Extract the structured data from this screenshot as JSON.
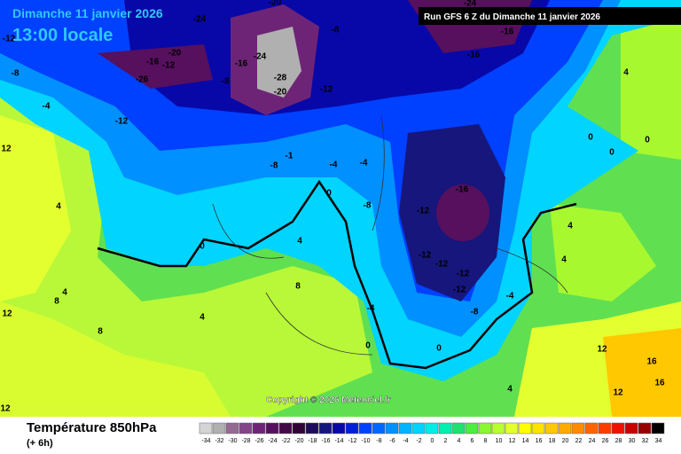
{
  "header": {
    "date": "Dimanche 11 janvier 2026",
    "time": "13:00 locale",
    "run": "Run GFS 6 Z du Dimanche 11 janvier 2026"
  },
  "copyright": "Copyright © 2026 Meteociel.fr",
  "footer": {
    "title": "Température 850hPa",
    "lead": "(+ 6h)"
  },
  "legend": {
    "values": [
      -34,
      -32,
      -30,
      -28,
      -26,
      -24,
      -22,
      -20,
      -18,
      -16,
      -14,
      -12,
      -10,
      -8,
      -6,
      -4,
      -2,
      0,
      2,
      4,
      6,
      8,
      10,
      12,
      14,
      16,
      18,
      20,
      22,
      24,
      26,
      28,
      30,
      32,
      34
    ],
    "colors": [
      "#d4d4d4",
      "#b0b0b0",
      "#946a94",
      "#84448a",
      "#6e2476",
      "#56105e",
      "#440848",
      "#300434",
      "#1e0c56",
      "#16167c",
      "#0808a8",
      "#0020d8",
      "#0040ff",
      "#0068ff",
      "#0090ff",
      "#00b4ff",
      "#00d4ff",
      "#00ecec",
      "#00f0b0",
      "#20e070",
      "#50ec40",
      "#88f830",
      "#b8ff30",
      "#e4ff30",
      "#ffff00",
      "#ffe400",
      "#ffc800",
      "#ffaa00",
      "#ff8c00",
      "#ff6400",
      "#ff3c00",
      "#f01000",
      "#c80000",
      "#960000",
      "#000000"
    ]
  },
  "contour_labels": [
    -24,
    -20,
    -8,
    -24,
    -16,
    -16,
    -20,
    -16,
    -12,
    -26,
    -24,
    -16,
    -28,
    -20,
    -12,
    -12,
    -8,
    -8,
    -12,
    -4,
    -1,
    -8,
    -4,
    -4,
    -8,
    -16,
    -12,
    -12,
    -12,
    -12,
    -12,
    -8,
    -4,
    -4,
    0,
    0,
    4,
    4,
    8,
    8,
    4,
    12,
    12,
    8,
    4,
    0,
    0,
    4,
    0,
    4,
    12,
    16,
    16,
    12,
    4,
    4,
    0,
    0,
    12
  ]
}
